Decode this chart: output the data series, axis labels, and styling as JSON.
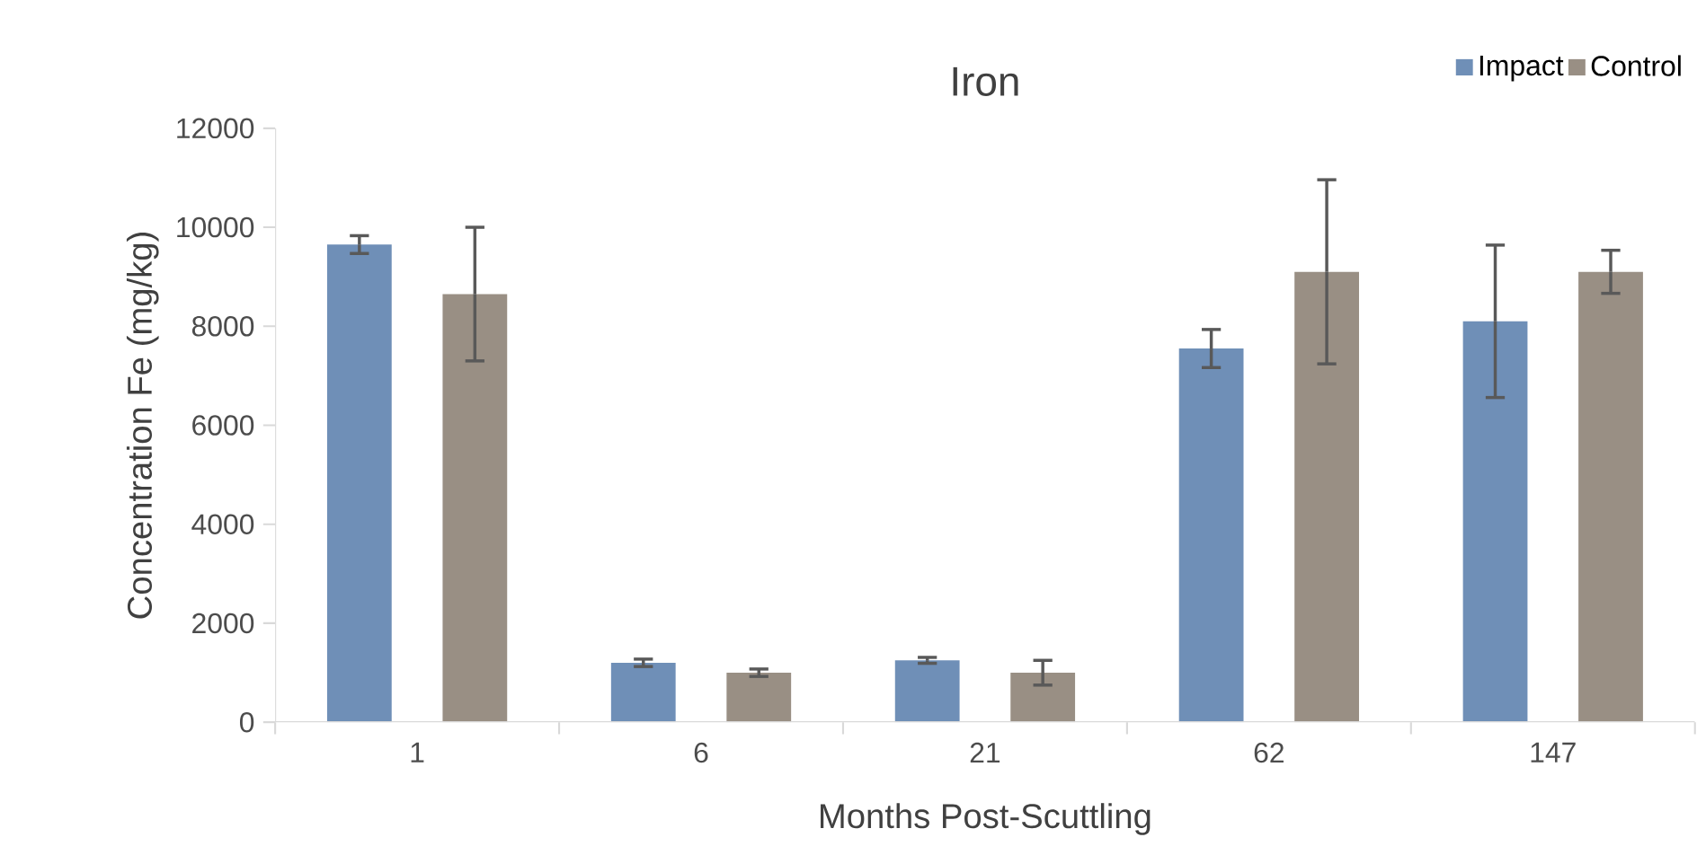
{
  "chart_data": {
    "type": "bar",
    "title": "Iron",
    "xlabel": "Months Post-Scuttling",
    "ylabel": "Concentration Fe (mg/kg)",
    "categories": [
      "1",
      "6",
      "21",
      "62",
      "147"
    ],
    "series": [
      {
        "name": "Impact",
        "color": "#6f8fb7",
        "values": [
          9650,
          1200,
          1250,
          7550,
          8100
        ],
        "errors": [
          180,
          75,
          60,
          385,
          1540
        ]
      },
      {
        "name": "Control",
        "color": "#998f84",
        "values": [
          8650,
          1000,
          1000,
          9100,
          9100
        ],
        "errors": [
          1350,
          75,
          250,
          1860,
          435
        ]
      }
    ],
    "ylim": [
      0,
      12000
    ],
    "yticks": [
      0,
      2000,
      4000,
      6000,
      8000,
      10000,
      12000
    ],
    "legend": "top right"
  }
}
